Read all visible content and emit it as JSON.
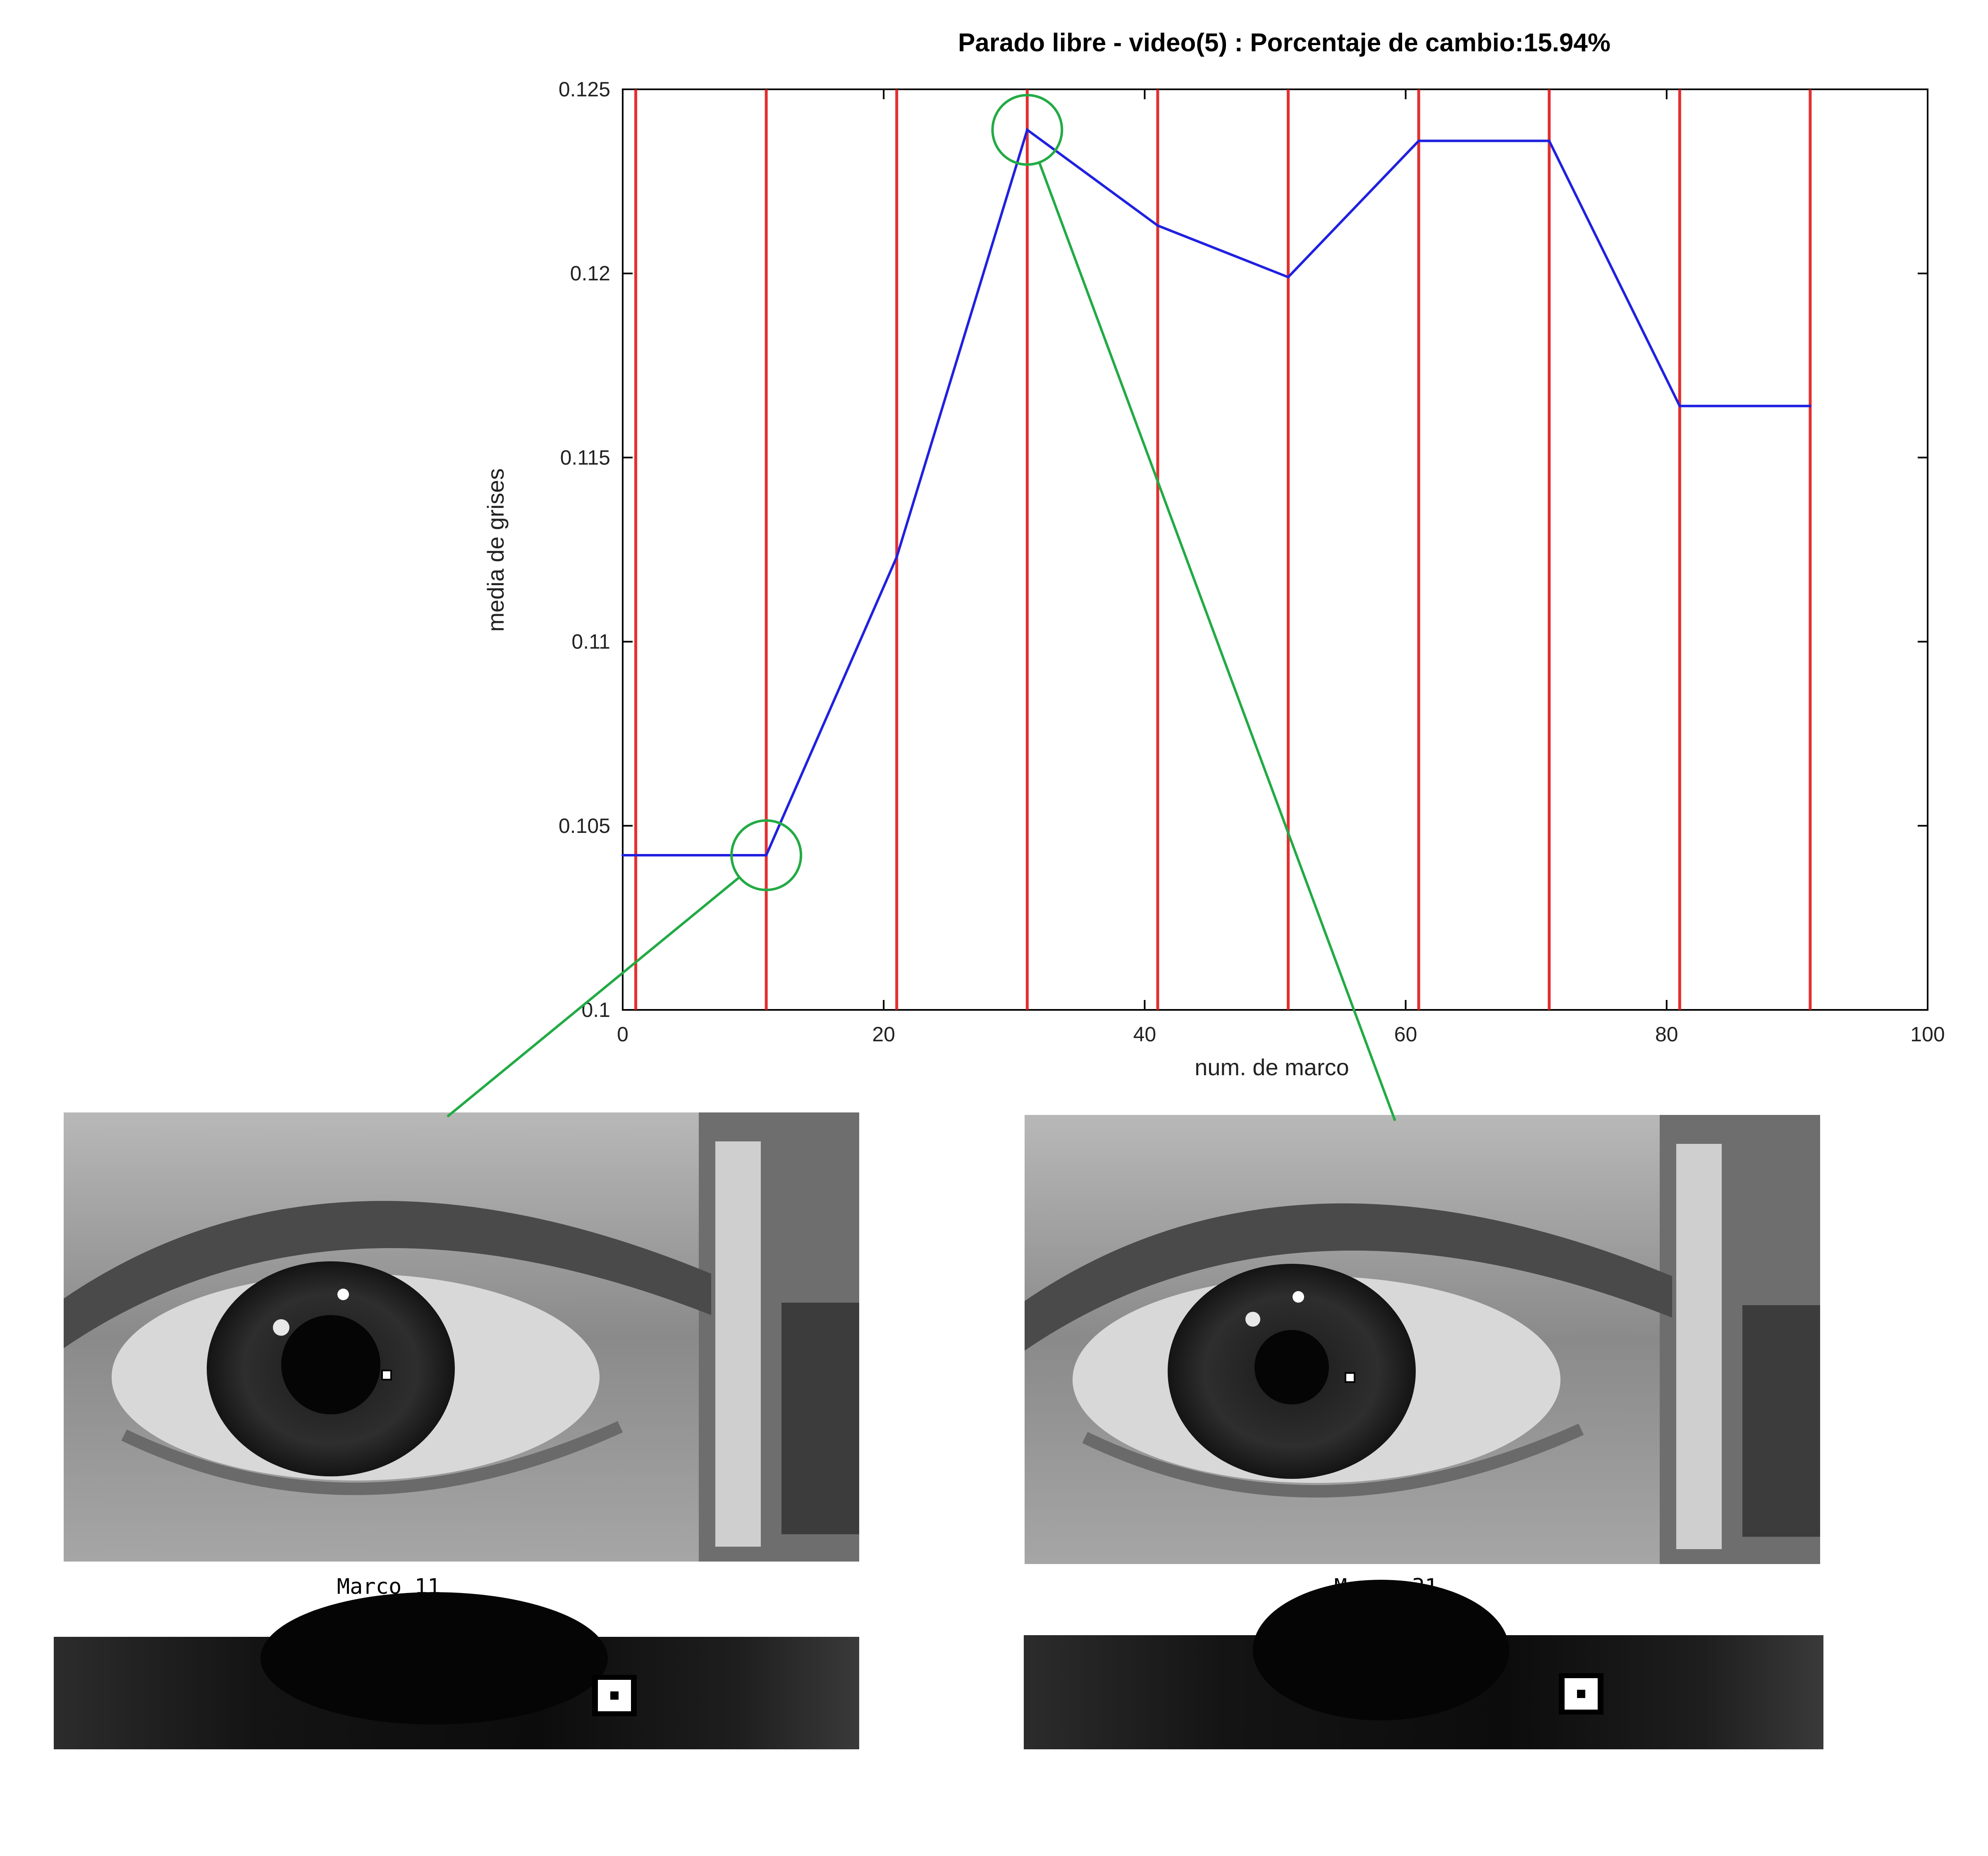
{
  "chart_data": {
    "type": "line",
    "title": "Parado libre - video(5) : Porcentaje de cambio:15.94%",
    "xlabel": "num. de marco",
    "ylabel": "media de grises",
    "xlim": [
      0,
      100
    ],
    "ylim": [
      0.1,
      0.125
    ],
    "xticks": [
      "0",
      "20",
      "40",
      "60",
      "80",
      "100"
    ],
    "yticks": [
      "0.1",
      "0.105",
      "0.11",
      "0.115",
      "0.12",
      "0.125"
    ],
    "grid": false,
    "series": [
      {
        "color": "#2020e0",
        "x": [
          0,
          11,
          21,
          31,
          41,
          51,
          61,
          71,
          81,
          91
        ],
        "y": [
          0.1042,
          0.1042,
          0.1123,
          0.1239,
          0.1213,
          0.1199,
          0.1236,
          0.1236,
          0.1164,
          0.1164
        ]
      }
    ],
    "vertical_markers": {
      "color": "#e01818",
      "x": [
        1,
        11,
        21,
        31,
        41,
        51,
        61,
        71,
        81,
        91
      ]
    },
    "highlights": [
      {
        "x": 11,
        "y": 0.1042,
        "color": "#22aa44"
      },
      {
        "x": 31,
        "y": 0.1239,
        "color": "#22aa44"
      }
    ]
  },
  "frames": [
    {
      "caption": "Marco 11"
    },
    {
      "caption": "Marco 31"
    }
  ]
}
